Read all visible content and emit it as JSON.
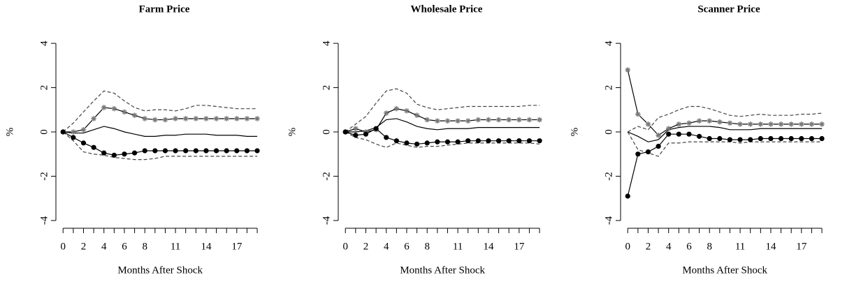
{
  "chart_data": [
    {
      "type": "line",
      "title": "Farm Price",
      "xlabel": "Months After Shock",
      "ylabel": "%",
      "x": [
        0,
        1,
        2,
        3,
        4,
        5,
        6,
        7,
        8,
        9,
        10,
        11,
        12,
        13,
        14,
        15,
        16,
        17,
        18,
        19
      ],
      "xlim": [
        -0.7,
        20.5
      ],
      "xticks": [
        0,
        2,
        4,
        6,
        8,
        11,
        14,
        17
      ],
      "ylim": [
        -4.35,
        4.35
      ],
      "yticks": [
        -4,
        -2,
        0,
        2,
        4
      ],
      "series": [
        {
          "color": "#444444",
          "dash": true,
          "values": [
            0,
            0.4,
            0.9,
            1.4,
            1.85,
            1.75,
            1.4,
            1.1,
            0.95,
            1.0,
            1.0,
            0.95,
            1.05,
            1.2,
            1.2,
            1.15,
            1.1,
            1.05,
            1.05,
            1.05
          ]
        },
        {
          "color": "#444444",
          "dash": true,
          "values": [
            0,
            -0.4,
            -0.9,
            -1.0,
            -1.05,
            -1.15,
            -1.2,
            -1.25,
            -1.25,
            -1.2,
            -1.1,
            -1.1,
            -1.1,
            -1.1,
            -1.1,
            -1.1,
            -1.1,
            -1.1,
            -1.1,
            -1.1
          ]
        },
        {
          "color": "#000000",
          "values": [
            0,
            -0.05,
            -0.05,
            0.1,
            0.25,
            0.15,
            0,
            -0.1,
            -0.2,
            -0.2,
            -0.15,
            -0.15,
            -0.1,
            -0.1,
            -0.1,
            -0.15,
            -0.15,
            -0.15,
            -0.2,
            -0.2
          ]
        },
        {
          "color": "#000000",
          "marker": "star",
          "marker_color": "#777777",
          "values": [
            0,
            0,
            0.1,
            0.6,
            1.1,
            1.05,
            0.9,
            0.75,
            0.6,
            0.55,
            0.55,
            0.6,
            0.6,
            0.6,
            0.6,
            0.6,
            0.6,
            0.6,
            0.6,
            0.6
          ]
        },
        {
          "color": "#000000",
          "marker": "circle",
          "marker_color": "#000000",
          "values": [
            0,
            -0.25,
            -0.5,
            -0.7,
            -0.95,
            -1.05,
            -1.0,
            -0.95,
            -0.85,
            -0.85,
            -0.85,
            -0.85,
            -0.85,
            -0.85,
            -0.85,
            -0.85,
            -0.85,
            -0.85,
            -0.85,
            -0.85
          ]
        }
      ]
    },
    {
      "type": "line",
      "title": "Wholesale Price",
      "xlabel": "Months After Shock",
      "ylabel": "%",
      "x": [
        0,
        1,
        2,
        3,
        4,
        5,
        6,
        7,
        8,
        9,
        10,
        11,
        12,
        13,
        14,
        15,
        16,
        17,
        18,
        19
      ],
      "xlim": [
        -0.7,
        20.5
      ],
      "xticks": [
        0,
        2,
        4,
        6,
        8,
        11,
        14,
        17
      ],
      "ylim": [
        -4.35,
        4.35
      ],
      "yticks": [
        -4,
        -2,
        0,
        2,
        4
      ],
      "series": [
        {
          "color": "#444444",
          "dash": true,
          "values": [
            0,
            0.35,
            0.7,
            1.3,
            1.85,
            1.95,
            1.75,
            1.25,
            1.1,
            1.0,
            1.05,
            1.1,
            1.15,
            1.15,
            1.15,
            1.15,
            1.15,
            1.15,
            1.2,
            1.2
          ]
        },
        {
          "color": "#444444",
          "dash": true,
          "values": [
            0,
            -0.25,
            -0.35,
            -0.55,
            -0.7,
            -0.5,
            -0.6,
            -0.7,
            -0.65,
            -0.65,
            -0.6,
            -0.55,
            -0.5,
            -0.5,
            -0.5,
            -0.5,
            -0.5,
            -0.5,
            -0.5,
            -0.55
          ]
        },
        {
          "color": "#000000",
          "values": [
            0,
            0,
            0.05,
            0.2,
            0.55,
            0.6,
            0.45,
            0.25,
            0.15,
            0.1,
            0.15,
            0.15,
            0.15,
            0.2,
            0.2,
            0.2,
            0.2,
            0.2,
            0.2,
            0.2
          ]
        },
        {
          "color": "#000000",
          "marker": "star",
          "marker_color": "#777777",
          "values": [
            0,
            0.15,
            0,
            0.1,
            0.85,
            1.05,
            0.95,
            0.75,
            0.55,
            0.5,
            0.5,
            0.5,
            0.5,
            0.55,
            0.55,
            0.55,
            0.55,
            0.55,
            0.55,
            0.55
          ]
        },
        {
          "color": "#000000",
          "marker": "circle",
          "marker_color": "#000000",
          "values": [
            0,
            -0.15,
            -0.1,
            0.15,
            -0.25,
            -0.4,
            -0.5,
            -0.55,
            -0.5,
            -0.45,
            -0.45,
            -0.45,
            -0.4,
            -0.4,
            -0.4,
            -0.4,
            -0.4,
            -0.4,
            -0.4,
            -0.4
          ]
        }
      ]
    },
    {
      "type": "line",
      "title": "Scanner Price",
      "xlabel": "Months After Shock",
      "ylabel": "%",
      "x": [
        0,
        1,
        2,
        3,
        4,
        5,
        6,
        7,
        8,
        9,
        10,
        11,
        12,
        13,
        14,
        15,
        16,
        17,
        18,
        19
      ],
      "xlim": [
        -0.7,
        20.5
      ],
      "xticks": [
        0,
        2,
        4,
        6,
        8,
        11,
        14,
        17
      ],
      "ylim": [
        -4.35,
        4.35
      ],
      "yticks": [
        -4,
        -2,
        0,
        2,
        4
      ],
      "series": [
        {
          "color": "#444444",
          "dash": true,
          "values": [
            0,
            0.25,
            0.1,
            0.65,
            0.8,
            1.0,
            1.15,
            1.15,
            1.05,
            0.9,
            0.75,
            0.7,
            0.75,
            0.8,
            0.75,
            0.75,
            0.75,
            0.8,
            0.8,
            0.85
          ]
        },
        {
          "color": "#444444",
          "dash": true,
          "values": [
            0,
            -0.8,
            -0.95,
            -1.1,
            -0.5,
            -0.5,
            -0.45,
            -0.45,
            -0.45,
            -0.45,
            -0.45,
            -0.5,
            -0.45,
            -0.45,
            -0.45,
            -0.45,
            -0.45,
            -0.45,
            -0.45,
            -0.45
          ]
        },
        {
          "color": "#000000",
          "values": [
            0,
            -0.2,
            -0.45,
            -0.35,
            0.1,
            0.2,
            0.25,
            0.25,
            0.25,
            0.2,
            0.1,
            0.1,
            0.1,
            0.15,
            0.15,
            0.15,
            0.15,
            0.15,
            0.15,
            0.15
          ]
        },
        {
          "color": "#000000",
          "marker": "star",
          "marker_color": "#777777",
          "values": [
            2.8,
            0.8,
            0.35,
            -0.15,
            0.15,
            0.35,
            0.4,
            0.5,
            0.5,
            0.45,
            0.4,
            0.35,
            0.35,
            0.35,
            0.35,
            0.35,
            0.35,
            0.35,
            0.35,
            0.35
          ]
        },
        {
          "color": "#000000",
          "marker": "circle",
          "marker_color": "#000000",
          "values": [
            -2.9,
            -1.0,
            -0.9,
            -0.65,
            -0.1,
            -0.1,
            -0.1,
            -0.2,
            -0.3,
            -0.3,
            -0.35,
            -0.35,
            -0.35,
            -0.3,
            -0.3,
            -0.3,
            -0.3,
            -0.3,
            -0.3,
            -0.3
          ]
        }
      ]
    }
  ]
}
